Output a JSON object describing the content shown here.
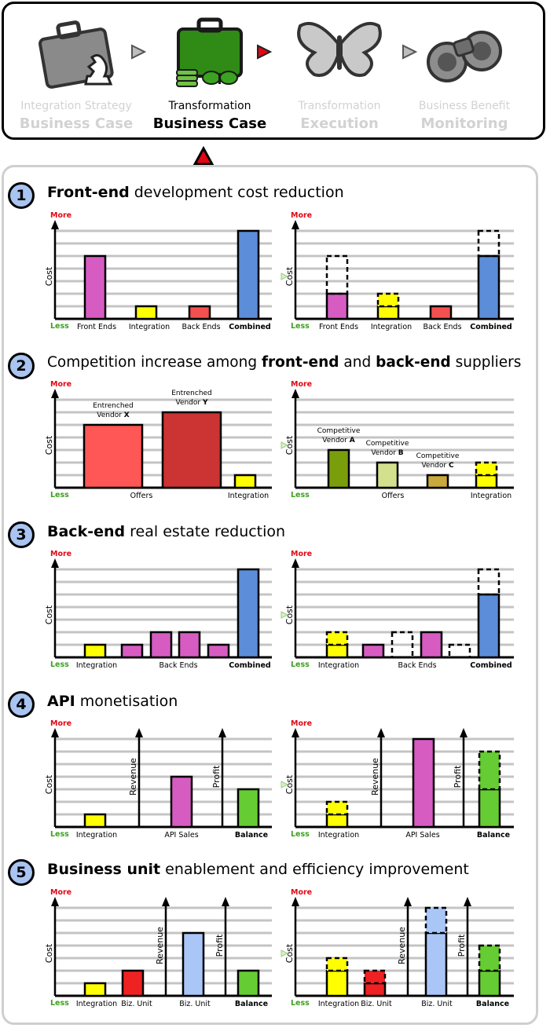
{
  "header": {
    "stages": [
      {
        "line1": "Integration Strategy",
        "line2": "Business Case",
        "active": false,
        "icon": "briefcase-chess-icon"
      },
      {
        "line1": "Transformation",
        "line2": "Business Case",
        "active": true,
        "icon": "briefcase-coins-butterfly-icon"
      },
      {
        "line1": "Transformation",
        "line2": "Execution",
        "active": false,
        "icon": "butterfly-icon"
      },
      {
        "line1": "Business Benefit",
        "line2": "Monitoring",
        "active": false,
        "icon": "binoculars-icon"
      }
    ],
    "colors": {
      "active_arrow": "#e30613",
      "inactive_arrow": "#bdbdbd"
    }
  },
  "axis": {
    "more": "More",
    "less": "Less",
    "cost": "Cost",
    "revenue": "Revenue",
    "profit": "Profit"
  },
  "sections": [
    {
      "num": "1",
      "title": [
        {
          "t": "Front-end",
          "b": true
        },
        {
          "t": " development cost reduction",
          "b": false
        }
      ]
    },
    {
      "num": "2",
      "title": [
        {
          "t": "Competition increase among ",
          "b": false
        },
        {
          "t": "front-end",
          "b": true
        },
        {
          "t": " and ",
          "b": false
        },
        {
          "t": "back-end",
          "b": true
        },
        {
          "t": " suppliers",
          "b": false
        }
      ]
    },
    {
      "num": "3",
      "title": [
        {
          "t": "Back-end",
          "b": true
        },
        {
          "t": " real estate reduction",
          "b": false
        }
      ]
    },
    {
      "num": "4",
      "title": [
        {
          "t": "API",
          "b": true
        },
        {
          "t": " monetisation",
          "b": false
        }
      ]
    },
    {
      "num": "5",
      "title": [
        {
          "t": "Business unit",
          "b": true
        },
        {
          "t": " enablement and efficiency improvement",
          "b": false
        }
      ]
    }
  ],
  "chart_data": [
    {
      "section": 1,
      "side": "before",
      "type": "bar",
      "ylabel": "Cost",
      "scale_max": 7,
      "bars": [
        {
          "value": 5,
          "color": "#d65cc2"
        },
        {
          "value": 1,
          "color": "#ffff00"
        },
        {
          "value": 1,
          "color": "#f35050"
        },
        {
          "value": 7,
          "color": "#5b8dd9"
        }
      ],
      "labels": [
        {
          "text": "Front Ends",
          "bold": false
        },
        {
          "text": "Integration",
          "bold": false
        },
        {
          "text": "Back Ends",
          "bold": false
        },
        {
          "text": "Combined",
          "bold": true
        }
      ]
    },
    {
      "section": 1,
      "side": "after",
      "type": "bar",
      "ylabel": "Cost",
      "scale_max": 7,
      "bars": [
        {
          "value": 2,
          "ghost": 5,
          "color": "#d65cc2"
        },
        {
          "value": 1,
          "extra": 1,
          "color": "#ffff00"
        },
        {
          "value": 1,
          "color": "#f35050"
        },
        {
          "value": 5,
          "ghost": 7,
          "color": "#5b8dd9"
        }
      ],
      "labels": [
        {
          "text": "Front Ends",
          "bold": false
        },
        {
          "text": "Integration",
          "bold": false
        },
        {
          "text": "Back Ends",
          "bold": false
        },
        {
          "text": "Combined",
          "bold": true
        }
      ]
    },
    {
      "section": 2,
      "side": "before",
      "type": "bar",
      "ylabel": "Cost",
      "scale_max": 7,
      "bars": [
        {
          "value": 5,
          "color": "#ff5656",
          "wide": true,
          "label": [
            "Entrenched",
            "Vendor ",
            "X"
          ]
        },
        {
          "value": 6,
          "color": "#cc3333",
          "wide": true,
          "label": [
            "Entrenched",
            "Vendor ",
            "Y"
          ]
        },
        {
          "value": 1,
          "color": "#ffff00"
        }
      ],
      "labels": [
        {
          "text": "Offers",
          "bold": false
        },
        {
          "text": "Integration",
          "bold": false
        }
      ]
    },
    {
      "section": 2,
      "side": "after",
      "type": "bar",
      "ylabel": "Cost",
      "scale_max": 7,
      "bars": [
        {
          "value": 3,
          "color": "#7a9e0b",
          "label": [
            "Competitive",
            "Vendor ",
            "A"
          ]
        },
        {
          "value": 2,
          "color": "#d3e08e",
          "label": [
            "Competitive",
            "Vendor ",
            "B"
          ]
        },
        {
          "value": 1,
          "color": "#c9a83e",
          "label": [
            "Competitive",
            "Vendor ",
            "C"
          ]
        },
        {
          "value": 1,
          "extra": 1,
          "color": "#ffff00"
        }
      ],
      "labels": [
        {
          "text": "Offers",
          "bold": false
        },
        {
          "text": "Integration",
          "bold": false
        }
      ]
    },
    {
      "section": 3,
      "side": "before",
      "type": "bar",
      "ylabel": "Cost",
      "scale_max": 7,
      "bars": [
        {
          "value": 1,
          "color": "#ffff00"
        },
        {
          "value": 1,
          "color": "#d65cc2"
        },
        {
          "value": 2,
          "color": "#d65cc2"
        },
        {
          "value": 2,
          "color": "#d65cc2"
        },
        {
          "value": 1,
          "color": "#d65cc2"
        },
        {
          "value": 7,
          "color": "#5b8dd9"
        }
      ],
      "labels": [
        {
          "text": "Integration",
          "bold": false
        },
        {
          "text": "Back Ends",
          "bold": false
        },
        {
          "text": "Combined",
          "bold": true
        }
      ]
    },
    {
      "section": 3,
      "side": "after",
      "type": "bar",
      "ylabel": "Cost",
      "scale_max": 7,
      "bars": [
        {
          "value": 1,
          "extra": 1,
          "color": "#ffff00"
        },
        {
          "value": 1,
          "color": "#d65cc2"
        },
        {
          "value": 0,
          "ghost": 2,
          "color": "#d65cc2"
        },
        {
          "value": 2,
          "color": "#d65cc2"
        },
        {
          "value": 0,
          "ghost": 1,
          "color": "#d65cc2"
        },
        {
          "value": 5,
          "ghost": 7,
          "color": "#5b8dd9"
        }
      ],
      "labels": [
        {
          "text": "Integration",
          "bold": false
        },
        {
          "text": "Back Ends",
          "bold": false
        },
        {
          "text": "Combined",
          "bold": true
        }
      ]
    },
    {
      "section": 4,
      "side": "before",
      "type": "bar",
      "ylabel": "Cost",
      "scale_max": 7,
      "bars": [
        {
          "value": 1,
          "color": "#ffff00"
        },
        {
          "value": 4,
          "color": "#d65cc2"
        },
        {
          "value": 3,
          "color": "#66cc33"
        }
      ],
      "labels": [
        {
          "text": "Integration",
          "bold": false
        },
        {
          "text": "API Sales",
          "bold": false
        },
        {
          "text": "Balance",
          "bold": true
        }
      ]
    },
    {
      "section": 4,
      "side": "after",
      "type": "bar",
      "ylabel": "Cost",
      "scale_max": 7,
      "bars": [
        {
          "value": 1,
          "extra": 1,
          "color": "#ffff00"
        },
        {
          "value": 7,
          "color": "#d65cc2"
        },
        {
          "value": 3,
          "extra": 3,
          "color": "#66cc33"
        }
      ],
      "labels": [
        {
          "text": "Integration",
          "bold": false
        },
        {
          "text": "API Sales",
          "bold": false
        },
        {
          "text": "Balance",
          "bold": true
        }
      ]
    },
    {
      "section": 5,
      "side": "before",
      "type": "bar",
      "ylabel": "Cost",
      "scale_max": 7,
      "bars": [
        {
          "value": 1,
          "color": "#ffff00"
        },
        {
          "value": 2,
          "color": "#ee2222"
        },
        {
          "value": 5,
          "color": "#a9c6f7"
        },
        {
          "value": 2,
          "color": "#66cc33"
        }
      ],
      "labels": [
        {
          "text": "Integration",
          "bold": false
        },
        {
          "text": "Biz. Unit",
          "bold": false
        },
        {
          "text": "Biz. Unit",
          "bold": false
        },
        {
          "text": "Balance",
          "bold": true
        }
      ]
    },
    {
      "section": 5,
      "side": "after",
      "type": "bar",
      "ylabel": "Cost",
      "scale_max": 7,
      "bars": [
        {
          "value": 2,
          "extra": 1,
          "color": "#ffff00"
        },
        {
          "value": 1,
          "extra": 1,
          "color": "#ee2222"
        },
        {
          "value": 5,
          "extra": 2,
          "color": "#a9c6f7"
        },
        {
          "value": 2,
          "extra": 2,
          "color": "#66cc33"
        }
      ],
      "labels": [
        {
          "text": "Integration",
          "bold": false
        },
        {
          "text": "Biz. Unit",
          "bold": false
        },
        {
          "text": "Biz. Unit",
          "bold": false
        },
        {
          "text": "Balance",
          "bold": true
        }
      ]
    }
  ]
}
